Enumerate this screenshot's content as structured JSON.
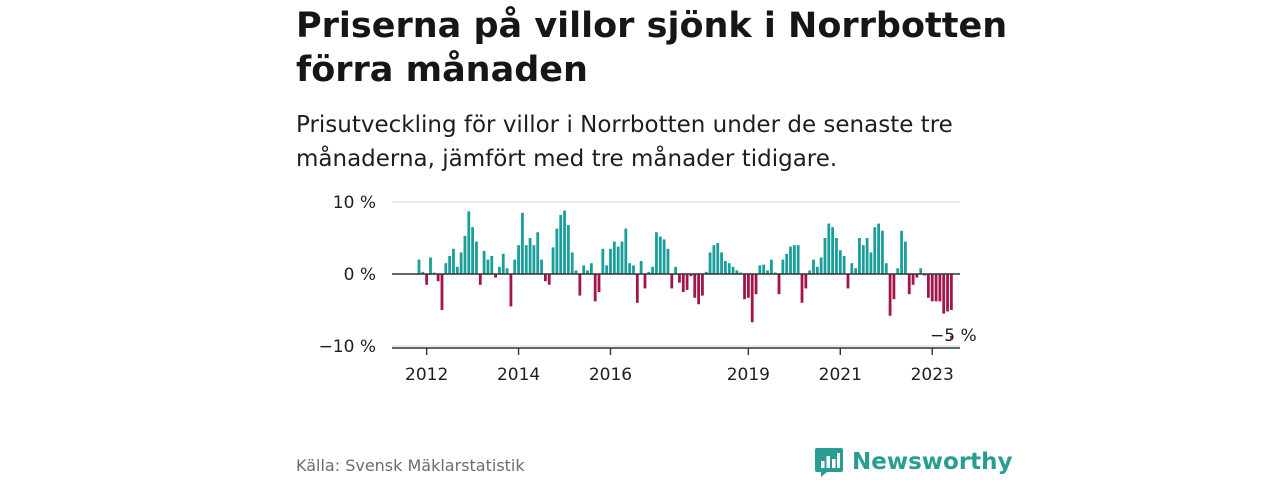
{
  "header": {
    "title": "Priserna på villor sjönk i Norrbotten förra månaden",
    "subtitle": "Prisutveckling för villor i Norrbotten under de senaste tre månaderna, jämfört med tre månader tidigare."
  },
  "footer": {
    "source": "Källa: Svensk Mäklarstatistik",
    "brand": "Newsworthy",
    "brand_icon": "bar-chart-logo-icon"
  },
  "colors": {
    "positive": "#1a9e9a",
    "negative": "#a3154a",
    "axis": "#333333",
    "grid": "#d9d9d9",
    "brand": "#2a9d92"
  },
  "chart_data": {
    "type": "bar",
    "x_start": "2011-11",
    "ylim": [
      -10,
      10
    ],
    "y_ticks": [
      {
        "value": 10,
        "label": "10 %"
      },
      {
        "value": 0,
        "label": "0 %"
      },
      {
        "value": -10,
        "label": "−10 %"
      }
    ],
    "x_ticks": [
      {
        "value": "2012-01",
        "label": "2012"
      },
      {
        "value": "2014-01",
        "label": "2014"
      },
      {
        "value": "2016-01",
        "label": "2016"
      },
      {
        "value": "2019-01",
        "label": "2019"
      },
      {
        "value": "2021-01",
        "label": "2021"
      },
      {
        "value": "2023-01",
        "label": "2023"
      }
    ],
    "annotation": {
      "text": "−5 %",
      "value": -5
    },
    "values": [
      2,
      0.3,
      -1.5,
      2.3,
      0.2,
      -1,
      -5,
      1.5,
      2.5,
      3.5,
      1,
      3,
      5.3,
      8.7,
      6.5,
      4.5,
      -1.5,
      3.2,
      2,
      2.5,
      -0.5,
      1,
      2.8,
      0.8,
      -4.5,
      2,
      4,
      8.5,
      4,
      5,
      4,
      5.8,
      2,
      -1,
      -1.5,
      3.7,
      6.3,
      8.2,
      8.8,
      6.8,
      3,
      0.5,
      -3,
      1.2,
      0.5,
      1.5,
      -3.8,
      -2.5,
      3.5,
      1.2,
      3.5,
      4.5,
      3.8,
      4.5,
      6.3,
      1.5,
      1.2,
      -4,
      1.8,
      -2,
      0.3,
      1,
      5.8,
      5.2,
      4.8,
      3.5,
      -2,
      1,
      -1.2,
      -2.5,
      -2.2,
      -0.3,
      -3.3,
      -4.2,
      -3,
      0.3,
      3,
      4,
      4.3,
      3,
      1.8,
      1.5,
      1,
      0.5,
      0.2,
      -3.5,
      -3.3,
      -6.7,
      -2.8,
      1.2,
      1.3,
      0.5,
      2,
      0.2,
      -2.8,
      2,
      2.8,
      3.8,
      4,
      4,
      -4,
      -2,
      0.5,
      2,
      1,
      2.3,
      5,
      7,
      6.5,
      5,
      3.3,
      2.5,
      -2,
      1.5,
      0.8,
      5,
      4,
      5,
      3,
      6.5,
      7,
      6,
      1.5,
      -5.8,
      -3.5,
      0.8,
      6,
      4.5,
      -2.8,
      -1.5,
      -0.5,
      0.8,
      -0.2,
      -3.3,
      -3.8,
      -3.8,
      -3.8,
      -5.5,
      -5.2,
      -5
    ]
  }
}
